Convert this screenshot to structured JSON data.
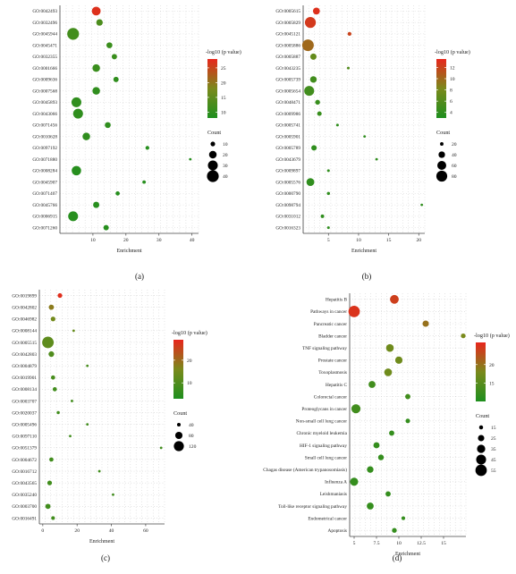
{
  "colors": {
    "low": "#1e8f1e",
    "mid": "#7a8a1c",
    "high": "#e8261c",
    "grid": "#c8c8c8",
    "axis": "#444444"
  },
  "chart_data": [
    {
      "panel": "(a)",
      "type": "scatter",
      "xlabel": "Enrichment",
      "legend_color_title": "-log10 (p value)",
      "legend_size_title": "Count",
      "xlim": [
        0,
        42
      ],
      "xticks": [
        10,
        20,
        30,
        40
      ],
      "color_range": [
        8,
        28
      ],
      "color_ticks": [
        10,
        15,
        20,
        25
      ],
      "size_ticks": [
        10,
        20,
        30,
        40
      ],
      "categories": [
        "GO:0042493",
        "GO:0032496",
        "GO:0045944",
        "GO:0045471",
        "GO:0032355",
        "GO:0001666",
        "GO:0009636",
        "GO:0007568",
        "GO:0045893",
        "GO:0043066",
        "GO:0071456",
        "GO:0010628",
        "GO:0097192",
        "GO:0071880",
        "GO:0008284",
        "GO:0045907",
        "GO:0071407",
        "GO:0045766",
        "GO:0006915",
        "GO:0071260"
      ],
      "points": [
        {
          "x": 11,
          "size": 25,
          "p": 27
        },
        {
          "x": 12,
          "size": 16,
          "p": 13
        },
        {
          "x": 4,
          "size": 40,
          "p": 12
        },
        {
          "x": 15,
          "size": 14,
          "p": 11
        },
        {
          "x": 16.5,
          "size": 12,
          "p": 11
        },
        {
          "x": 11,
          "size": 20,
          "p": 11
        },
        {
          "x": 17,
          "size": 12,
          "p": 10
        },
        {
          "x": 11,
          "size": 20,
          "p": 10
        },
        {
          "x": 5,
          "size": 30,
          "p": 10
        },
        {
          "x": 5.5,
          "size": 30,
          "p": 10
        },
        {
          "x": 14.5,
          "size": 14,
          "p": 10
        },
        {
          "x": 8,
          "size": 20,
          "p": 10
        },
        {
          "x": 26.5,
          "size": 8,
          "p": 9
        },
        {
          "x": 39.5,
          "size": 5,
          "p": 9
        },
        {
          "x": 5,
          "size": 28,
          "p": 9
        },
        {
          "x": 25.5,
          "size": 7,
          "p": 9
        },
        {
          "x": 17.5,
          "size": 9,
          "p": 9
        },
        {
          "x": 11,
          "size": 15,
          "p": 9
        },
        {
          "x": 4,
          "size": 30,
          "p": 9
        },
        {
          "x": 14,
          "size": 12,
          "p": 9
        }
      ]
    },
    {
      "panel": "(b)",
      "type": "scatter",
      "xlabel": "Enrichment",
      "legend_color_title": "-log10 (p value)",
      "legend_size_title": "Count",
      "xlim": [
        0.8,
        21
      ],
      "xticks": [
        5,
        10,
        15,
        20
      ],
      "color_range": [
        3,
        13.5
      ],
      "color_ticks": [
        4,
        6,
        8,
        10,
        12
      ],
      "size_ticks": [
        20,
        40,
        60,
        80
      ],
      "categories": [
        "GO:0005615",
        "GO:0005829",
        "GO:0045121",
        "GO:0005886",
        "GO:0005887",
        "GO:0043235",
        "GO:0005739",
        "GO:0005654",
        "GO:0048471",
        "GO:0009986",
        "GO:0005741",
        "GO:0005901",
        "GO:0005789",
        "GO:0043679",
        "GO:0009897",
        "GO:0005576",
        "GO:0000790",
        "GO:0098794",
        "GO:0031012",
        "GO:0016323"
      ],
      "points": [
        {
          "x": 3,
          "size": 42,
          "p": 13
        },
        {
          "x": 2,
          "size": 80,
          "p": 12.5
        },
        {
          "x": 8.5,
          "size": 22,
          "p": 12
        },
        {
          "x": 1.6,
          "size": 88,
          "p": 10
        },
        {
          "x": 2.5,
          "size": 38,
          "p": 7
        },
        {
          "x": 8.3,
          "size": 16,
          "p": 6
        },
        {
          "x": 2.5,
          "size": 40,
          "p": 5
        },
        {
          "x": 1.8,
          "size": 70,
          "p": 5
        },
        {
          "x": 3.2,
          "size": 28,
          "p": 4.5
        },
        {
          "x": 3.5,
          "size": 26,
          "p": 4.5
        },
        {
          "x": 6.5,
          "size": 16,
          "p": 4
        },
        {
          "x": 11,
          "size": 12,
          "p": 4
        },
        {
          "x": 2.6,
          "size": 32,
          "p": 4
        },
        {
          "x": 13,
          "size": 10,
          "p": 4
        },
        {
          "x": 5,
          "size": 16,
          "p": 4
        },
        {
          "x": 2,
          "size": 50,
          "p": 4
        },
        {
          "x": 5,
          "size": 18,
          "p": 4
        },
        {
          "x": 20.5,
          "size": 8,
          "p": 4
        },
        {
          "x": 4,
          "size": 20,
          "p": 4
        },
        {
          "x": 5,
          "size": 16,
          "p": 4
        }
      ]
    },
    {
      "panel": "(c)",
      "type": "scatter",
      "xlabel": "Enrichment",
      "legend_color_title": "-log10 (p value)",
      "legend_size_title": "Count",
      "xlim": [
        -2,
        71
      ],
      "xticks": [
        0,
        20,
        40,
        60
      ],
      "color_range": [
        3,
        29
      ],
      "color_ticks": [
        10,
        20
      ],
      "size_ticks": [
        40,
        80,
        120
      ],
      "categories": [
        "GO:0019899",
        "GO:0042802",
        "GO:0046982",
        "GO:0008144",
        "GO:0005515",
        "GO:0042803",
        "GO:0004879",
        "GO:0019901",
        "GO:0008134",
        "GO:0003707",
        "GO:0020037",
        "GO:0005496",
        "GO:0097110",
        "GO:0051379",
        "GO:0004672",
        "GO:0016712",
        "GO:0043565",
        "GO:0035240",
        "GO:0003700",
        "GO:0016491"
      ],
      "points": [
        {
          "x": 10,
          "size": 50,
          "p": 28
        },
        {
          "x": 5,
          "size": 55,
          "p": 18
        },
        {
          "x": 6,
          "size": 50,
          "p": 15
        },
        {
          "x": 18,
          "size": 30,
          "p": 13
        },
        {
          "x": 3,
          "size": 145,
          "p": 12
        },
        {
          "x": 5,
          "size": 60,
          "p": 10
        },
        {
          "x": 26,
          "size": 30,
          "p": 9
        },
        {
          "x": 6,
          "size": 45,
          "p": 9
        },
        {
          "x": 7,
          "size": 45,
          "p": 8
        },
        {
          "x": 17,
          "size": 30,
          "p": 8
        },
        {
          "x": 9,
          "size": 35,
          "p": 8
        },
        {
          "x": 26,
          "size": 25,
          "p": 8
        },
        {
          "x": 16,
          "size": 25,
          "p": 8
        },
        {
          "x": 69,
          "size": 20,
          "p": 8
        },
        {
          "x": 5,
          "size": 45,
          "p": 8
        },
        {
          "x": 33,
          "size": 25,
          "p": 8
        },
        {
          "x": 4,
          "size": 50,
          "p": 8
        },
        {
          "x": 41,
          "size": 20,
          "p": 8
        },
        {
          "x": 3,
          "size": 55,
          "p": 8
        },
        {
          "x": 6,
          "size": 40,
          "p": 8
        }
      ]
    },
    {
      "panel": "(d)",
      "type": "scatter",
      "xlabel": "Enrichment",
      "legend_color_title": "-log10 (p value)",
      "legend_size_title": "Count",
      "xlim": [
        4.5,
        17.5
      ],
      "xticks": [
        5.0,
        7.5,
        10.0,
        12.5,
        15.0
      ],
      "color_range": [
        10,
        26
      ],
      "color_ticks": [
        15,
        20
      ],
      "size_ticks": [
        15,
        25,
        35,
        45,
        55
      ],
      "categories": [
        "Hepatitis B",
        "Pathways in cancer",
        "Pancreatic cancer",
        "Bladder cancer",
        "TNF signaling pathway",
        "Prostate cancer",
        "Toxoplasmosis",
        "Hepatitis C",
        "Colorectal cancer",
        "Proteoglycans in cancer",
        "Non-small cell lung cancer",
        "Chronic myeloid leukemia",
        "HIF-1 signaling pathway",
        "Small cell lung cancer",
        "Chagas disease (American trypanosomiasis)",
        "Influenza A",
        "Leishmaniasis",
        "Toll-like receptor signaling pathway",
        "Endometrical cancer",
        "Apoptosis"
      ],
      "points": [
        {
          "x": 9.5,
          "size": 38,
          "p": 24
        },
        {
          "x": 5.0,
          "size": 55,
          "p": 25
        },
        {
          "x": 13.0,
          "size": 25,
          "p": 20
        },
        {
          "x": 17.2,
          "size": 18,
          "p": 18
        },
        {
          "x": 9.0,
          "size": 32,
          "p": 17
        },
        {
          "x": 10.0,
          "size": 30,
          "p": 17
        },
        {
          "x": 8.8,
          "size": 32,
          "p": 17
        },
        {
          "x": 7.0,
          "size": 28,
          "p": 13
        },
        {
          "x": 11.0,
          "size": 20,
          "p": 13
        },
        {
          "x": 5.2,
          "size": 40,
          "p": 13
        },
        {
          "x": 11.0,
          "size": 17,
          "p": 12
        },
        {
          "x": 9.2,
          "size": 20,
          "p": 12
        },
        {
          "x": 7.5,
          "size": 24,
          "p": 12
        },
        {
          "x": 8.0,
          "size": 22,
          "p": 12
        },
        {
          "x": 6.8,
          "size": 26,
          "p": 12
        },
        {
          "x": 5.0,
          "size": 34,
          "p": 12
        },
        {
          "x": 8.8,
          "size": 20,
          "p": 12
        },
        {
          "x": 6.8,
          "size": 28,
          "p": 12
        },
        {
          "x": 10.5,
          "size": 14,
          "p": 12
        },
        {
          "x": 9.5,
          "size": 18,
          "p": 12
        }
      ]
    }
  ]
}
